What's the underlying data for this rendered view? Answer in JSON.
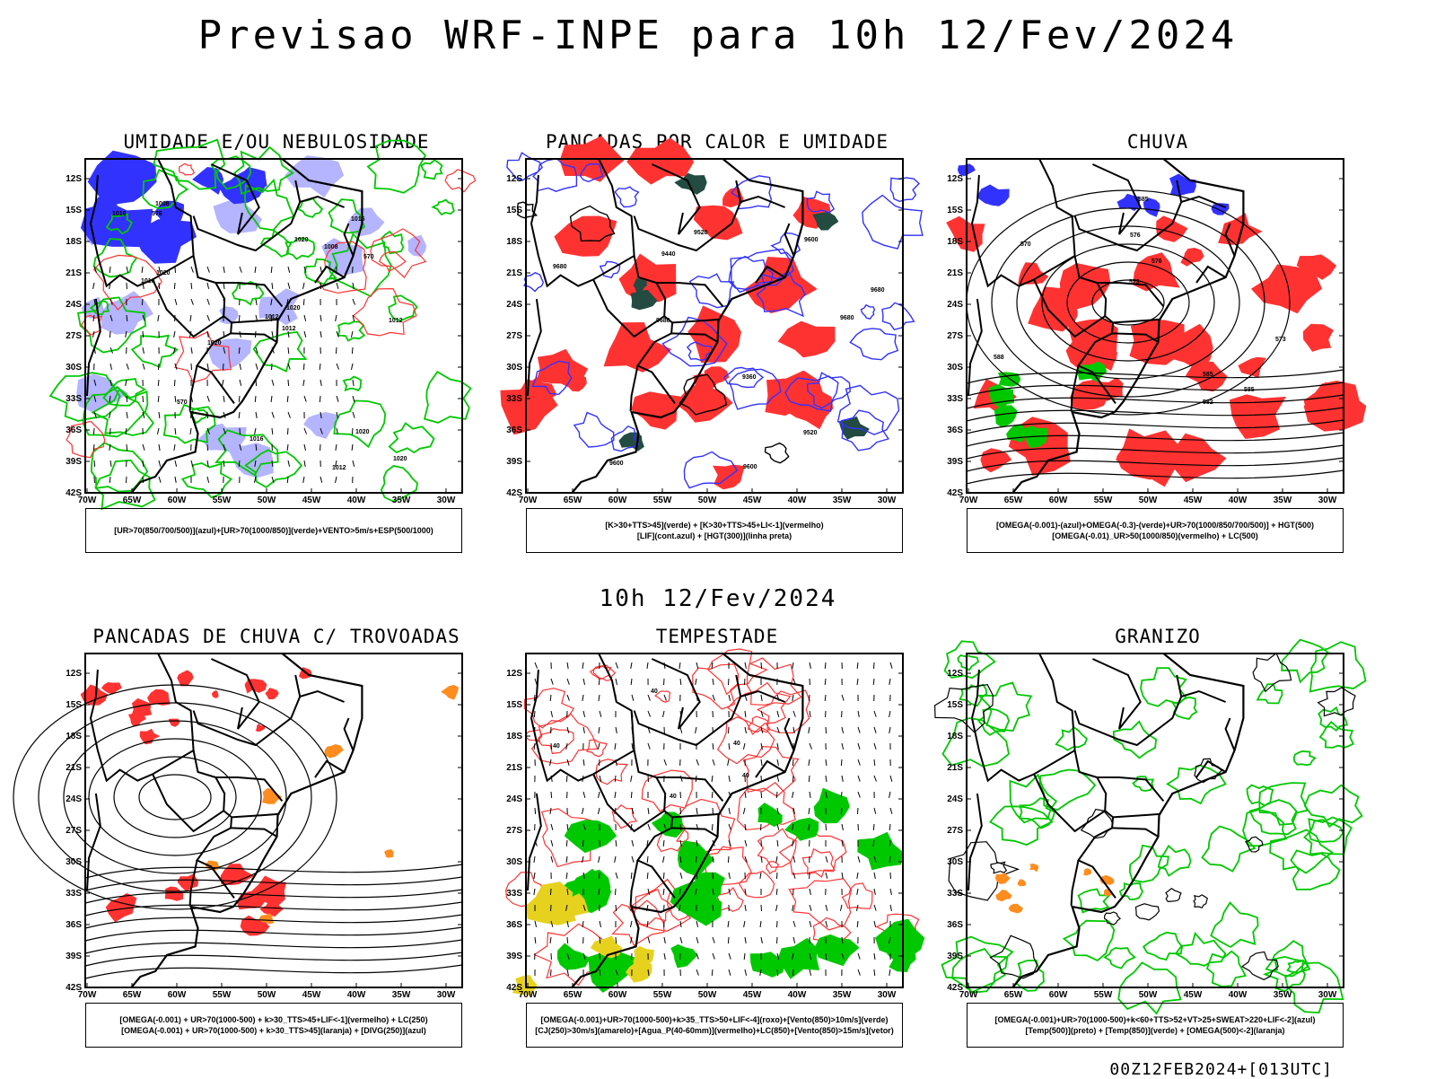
{
  "title": "Previsao WRF-INPE  para 10h 12/Fev/2024",
  "subtitle": "10h 12/Fev/2024",
  "footer": "00Z12FEB2024+[013UTC]",
  "axes": {
    "lat_labels": [
      "12S",
      "15S",
      "18S",
      "21S",
      "24S",
      "27S",
      "30S",
      "33S",
      "36S",
      "39S",
      "42S"
    ],
    "lon_labels": [
      "70W",
      "65W",
      "60W",
      "55W",
      "50W",
      "45W",
      "40W",
      "35W",
      "30W"
    ]
  },
  "colors": {
    "blue": "#3232ff",
    "light_blue": "#b4b4ff",
    "green": "#00c800",
    "red": "#ff3232",
    "dark_green": "#234b41",
    "orange": "#ff8c1e",
    "yellow": "#e6d21e",
    "purple": "#a000c8"
  },
  "panels": [
    {
      "title": "UMIDADE E/OU NEBULOSIDADE",
      "legend": [
        "[UR>70(850/700/500)](azul)+[UR>70(1000/850)](verde)+VENTO>5m/s+ESP(500/1000)"
      ],
      "labels": [
        "1016",
        "1016",
        "1012",
        "1020",
        "1020",
        "1020",
        "1020",
        "1012",
        "1016",
        "1008",
        "1012",
        "1016",
        "1020",
        "1012",
        "1008",
        "1020",
        "570",
        "570",
        "576"
      ]
    },
    {
      "title": "PANCADAS POR CALOR E UMIDADE",
      "legend": [
        "[K>30+TTS>45](verde) + [K>30+TTS>45+LI<-1](vermelho)",
        "[LIF](cont.azul) + [HGT(300)](linha preta)"
      ],
      "labels": [
        "9680",
        "9680",
        "9680",
        "9600",
        "9680",
        "9600",
        "9520",
        "9440",
        "9600",
        "9360",
        "9520"
      ]
    },
    {
      "title": "CHUVA",
      "legend": [
        "[OMEGA(-0.001)-(azul)+OMEGA(-0.3)-(verde)+UR>70(1000/850/700/500)] + HGT(500)",
        "[OMEGA(-0.01)_UR>50(1000/850)(vermelho) + LC(500)"
      ],
      "labels": [
        "588",
        "585",
        "585",
        "582",
        "585",
        "576",
        "570",
        "573",
        "576",
        "573"
      ]
    },
    {
      "title": "PANCADAS DE CHUVA C/ TROVOADAS",
      "legend": [
        "[OMEGA(-0.001) + UR>70(1000-500) + k>30_TTS>45+LIF<-1](vermelho) + LC(250)",
        "[OMEGA(-0.001) + UR>70(1000-500) + k>30_TTS>45](laranja) + [DIVG(250)](azul)"
      ],
      "labels": []
    },
    {
      "title": "TEMPESTADE",
      "legend": [
        "[OMEGA(-0.001)+UR>70(1000-500)+k>35_TTS>50+LIF<-4](roxo)+[Vento(850)>10m/s](verde)",
        "[CJ(250)>30m/s](amarelo)+[Agua_P(40-60mm)](vermelho)+LC(850)+[Vento(850)>15m/s](vetor)"
      ],
      "labels": [
        "40",
        "40",
        "40",
        "40",
        "40"
      ]
    },
    {
      "title": "GRANIZO",
      "legend": [
        "[OMEGA(-0.001)+UR>70(1000-500)+k<60+TTS>52+VT>25+SWEAT>220+LIF<-2](azul)",
        "[Temp(500)](preto) + [Temp(850)](verde) + [OMEGA(500)<-2](laranja)"
      ],
      "labels": []
    }
  ]
}
